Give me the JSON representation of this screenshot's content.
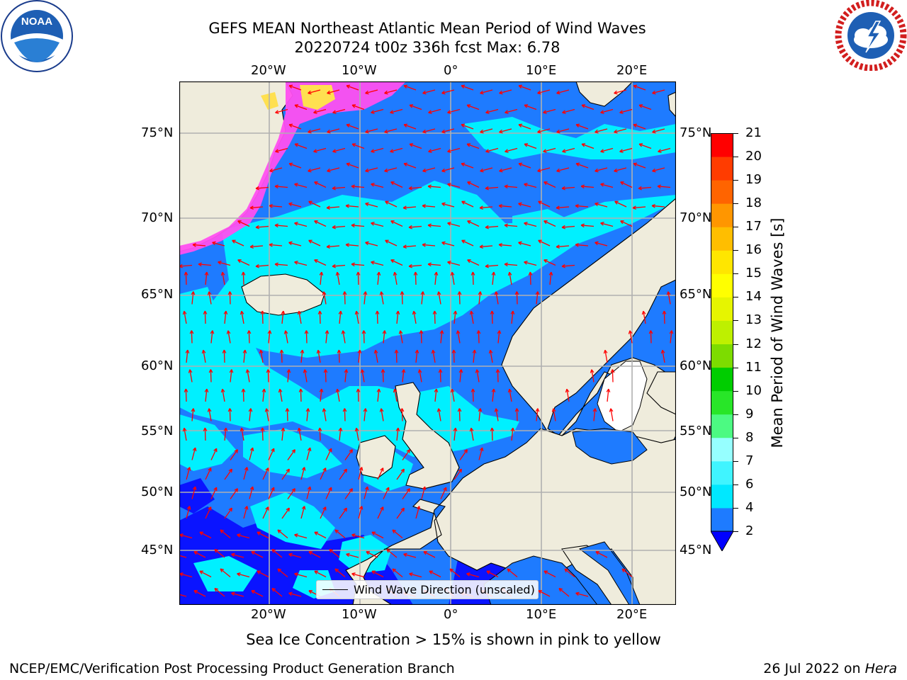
{
  "title": {
    "line1": "GEFS MEAN Northeast Atlantic Mean Period of Wind Waves",
    "line2": "20220724 t00z 336h fcst   Max: 6.78"
  },
  "axes": {
    "top_lon_ticks": [
      "20°W",
      "10°W",
      "0°",
      "10°E",
      "20°E"
    ],
    "bottom_lon_ticks": [
      "20°W",
      "10°W",
      "0°",
      "10°E",
      "20°E"
    ],
    "left_lat_ticks": [
      "75°N",
      "70°N",
      "65°N",
      "60°N",
      "55°N",
      "50°N",
      "45°N"
    ],
    "right_lat_ticks": [
      "75°N",
      "70°N",
      "65°N",
      "60°N",
      "55°N",
      "50°N",
      "45°N"
    ]
  },
  "legend": {
    "label": "Wind Wave Direction (unscaled)"
  },
  "colorbar": {
    "label": "Mean Period of Wind Waves [s]",
    "ticks": [
      "2",
      "4",
      "6",
      "7",
      "8",
      "9",
      "10",
      "11",
      "12",
      "13",
      "14",
      "15",
      "16",
      "17",
      "18",
      "19",
      "20",
      "21"
    ],
    "colors": [
      "#1e7bff",
      "#00e8ff",
      "#40f4ff",
      "#96ffff",
      "#4cfa82",
      "#28e628",
      "#00cd00",
      "#7ddc00",
      "#bef000",
      "#e6f500",
      "#ffff00",
      "#ffe600",
      "#ffbe00",
      "#ff9600",
      "#ff6400",
      "#ff3c00",
      "#ff0000"
    ],
    "under_color": "#0000ff"
  },
  "map_colors": {
    "land": "#efecdc",
    "lake": "#ffffff",
    "sea_low": "#1e7bff",
    "sea_mid": "#00f0ff",
    "sea_deep": "#0a14ff",
    "ice_pink": "#ff50f0",
    "ice_yellow": "#ffe050",
    "arrow": "#ff0000",
    "grid": "#b0b0b0"
  },
  "note": "Sea Ice Concentration > 15% is shown in pink to yellow",
  "footer": {
    "left": "NCEP/EMC/Verification Post Processing Product Generation Branch",
    "right_date": "26 Jul 2022 on ",
    "right_machine": "Hera"
  },
  "logos": {
    "noaa_text": "NOAA"
  }
}
